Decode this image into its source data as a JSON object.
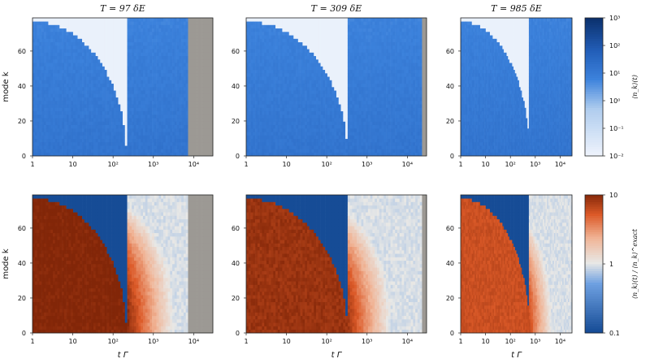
{
  "chart_data": {
    "type": "heatmap",
    "x_axis": {
      "label": "t Γ",
      "scale": "log",
      "range": [
        1,
        30000
      ],
      "ticks": [
        1,
        10,
        100,
        1000,
        10000
      ],
      "tick_labels": [
        "1",
        "10",
        "10²",
        "10³",
        "10⁴"
      ]
    },
    "y_axis": {
      "label": "mode k",
      "range": [
        0,
        79
      ],
      "ticks": [
        0,
        20,
        40,
        60
      ],
      "tick_labels": [
        "0",
        "20",
        "40",
        "60"
      ]
    },
    "column_titles": [
      "T = 97 δE",
      "T = 309 δE",
      "T = 985 δE"
    ],
    "column_T": [
      97,
      309,
      985
    ],
    "column_data_end_t": [
      7000,
      22000,
      30000
    ],
    "rows": [
      {
        "quantity": "⟨n_k⟩(t)",
        "colorbar_label": "⟨n_k⟩(t)",
        "colorscale": "blues",
        "colorbar_scale": "log",
        "range": [
          0.01,
          1000
        ],
        "colorbar_ticks": [
          0.01,
          0.1,
          1,
          10,
          100,
          1000
        ],
        "colorbar_tick_labels": [
          "10⁻²",
          "10⁻¹",
          "10⁰",
          "10¹",
          "10²",
          "10³"
        ]
      },
      {
        "quantity": "⟨n_k⟩(t) / ⟨n_k⟩^exact",
        "colorbar_label": "⟨n_k⟩(t) / ⟨n_k⟩^exact",
        "colorscale": "blue-white-orange",
        "colorbar_scale": "log",
        "range": [
          0.1,
          10
        ],
        "colorbar_ticks": [
          0.1,
          1,
          10
        ],
        "colorbar_tick_labels": [
          "0.1",
          "1",
          "10"
        ]
      }
    ],
    "front": {
      "description": "mode k reaches a value at time t along k = 76·sqrt(1 − (log10 t / log10 t0)²)",
      "k_max": 76,
      "t0_per_column": [
        200,
        300,
        550
      ]
    },
    "missing_color": "#9c9994"
  }
}
